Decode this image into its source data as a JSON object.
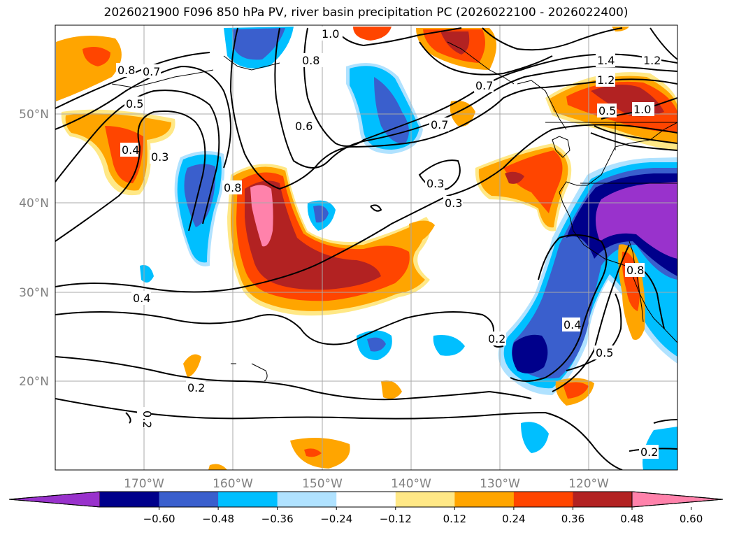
{
  "title": "2026021900 F096 850 hPa PV, river basin precipitation PC (2026022100 - 2026022400)",
  "map": {
    "lat_ticks": [
      "50°N",
      "40°N",
      "30°N",
      "20°N"
    ],
    "lon_ticks": [
      "170°W",
      "160°W",
      "150°W",
      "140°W",
      "130°W",
      "120°W"
    ],
    "gridlines": true,
    "tick_label_color": "#808080"
  },
  "colorbar": {
    "ticks": [
      "−0.60",
      "−0.48",
      "−0.36",
      "−0.24",
      "−0.12",
      "0.12",
      "0.24",
      "0.36",
      "0.48",
      "0.60"
    ],
    "colors": [
      "#9932cc",
      "#00008b",
      "#3a5fcd",
      "#00bfff",
      "#b0e2ff",
      "#ffffff",
      "#ffe886",
      "#ffa500",
      "#ff4500",
      "#b22222",
      "#ff82ab"
    ],
    "extend": "both"
  },
  "contour_labels": [
    "1.0",
    "0.8",
    "0.8",
    "0.7",
    "0.5",
    "0.4",
    "0.3",
    "0.8",
    "0.6",
    "0.7",
    "1.4",
    "1.2",
    "1.2",
    "1.0",
    "0.5",
    "0.3",
    "0.3",
    "0.4",
    "0.2",
    "0.2",
    "0.2",
    "0.5",
    "0.2",
    "0.8",
    "0.4",
    "0.7"
  ]
}
